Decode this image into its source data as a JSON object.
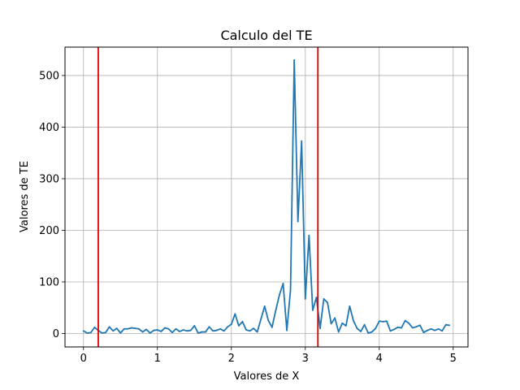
{
  "chart_data": {
    "type": "line",
    "title": "Calculo del TE",
    "xlabel": "Valores de X",
    "ylabel": "Valores de TE",
    "xlim": [
      -0.25,
      5.2
    ],
    "ylim": [
      -26,
      555
    ],
    "xticks": [
      0,
      1,
      2,
      3,
      4,
      5
    ],
    "yticks": [
      0,
      100,
      200,
      300,
      400,
      500
    ],
    "grid": true,
    "line_color": "#1f77b4",
    "vline_color": "#e00000",
    "vlines": [
      0.2,
      3.17
    ],
    "series": [
      {
        "x": [
          0.0,
          0.05,
          0.1,
          0.15,
          0.2,
          0.25,
          0.3,
          0.35,
          0.4,
          0.45,
          0.5,
          0.55,
          0.6,
          0.65,
          0.7,
          0.75,
          0.8,
          0.85,
          0.9,
          0.95,
          1.0,
          1.05,
          1.1,
          1.15,
          1.2,
          1.25,
          1.3,
          1.35,
          1.4,
          1.45,
          1.5,
          1.55,
          1.6,
          1.65,
          1.7,
          1.75,
          1.8,
          1.85,
          1.9,
          1.95,
          2.0,
          2.05,
          2.1,
          2.15,
          2.2,
          2.25,
          2.3,
          2.35,
          2.4,
          2.45,
          2.5,
          2.55,
          2.6,
          2.65,
          2.7,
          2.75,
          2.8,
          2.85,
          2.9,
          2.95,
          3.0,
          3.05,
          3.1,
          3.15,
          3.2,
          3.25,
          3.3,
          3.35,
          3.4,
          3.45,
          3.5,
          3.55,
          3.6,
          3.65,
          3.7,
          3.75,
          3.8,
          3.85,
          3.9,
          3.95,
          4.0,
          4.05,
          4.1,
          4.15,
          4.2,
          4.25,
          4.3,
          4.35,
          4.4,
          4.45,
          4.5,
          4.55,
          4.6,
          4.65,
          4.7,
          4.75,
          4.8,
          4.85,
          4.9,
          4.95
        ],
        "values": [
          5,
          1,
          2,
          12,
          6,
          1,
          2,
          13,
          5,
          10,
          1,
          9,
          9,
          11,
          10,
          9,
          3,
          8,
          1,
          6,
          7,
          4,
          11,
          9,
          2,
          9,
          4,
          7,
          5,
          6,
          15,
          1,
          3,
          3,
          13,
          5,
          6,
          9,
          5,
          13,
          18,
          38,
          15,
          23,
          7,
          5,
          10,
          3,
          28,
          53,
          25,
          12,
          45,
          75,
          97,
          6,
          85,
          530,
          217,
          373,
          67,
          190,
          45,
          70,
          10,
          67,
          60,
          19,
          30,
          3,
          20,
          15,
          53,
          25,
          10,
          4,
          17,
          1,
          3,
          10,
          24,
          23,
          24,
          5,
          8,
          12,
          11,
          25,
          20,
          11,
          13,
          16,
          2,
          6,
          9,
          6,
          9,
          5,
          17,
          16
        ]
      }
    ]
  }
}
